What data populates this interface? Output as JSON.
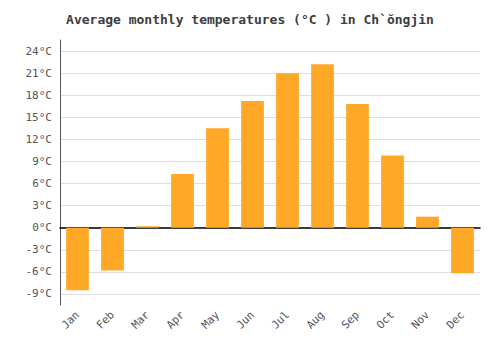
{
  "chart_data": {
    "type": "bar",
    "title": "Average monthly temperatures (°C ) in Ch`ŏngjin",
    "categories": [
      "Jan",
      "Feb",
      "Mar",
      "Apr",
      "May",
      "Jun",
      "Jul",
      "Aug",
      "Sep",
      "Oct",
      "Nov",
      "Dec"
    ],
    "values": [
      -8.5,
      -5.8,
      0.2,
      7.3,
      13.5,
      17.2,
      21.0,
      22.2,
      16.8,
      9.8,
      1.5,
      -6.2
    ],
    "color": "#FFA828",
    "ylim": [
      -10.5,
      25.5
    ],
    "yticks": [
      {
        "value": -9,
        "label": "-9°C"
      },
      {
        "value": -6,
        "label": "-6°C"
      },
      {
        "value": -3,
        "label": "-3°C"
      },
      {
        "value": 0,
        "label": "0°C"
      },
      {
        "value": 3,
        "label": "3°C"
      },
      {
        "value": 6,
        "label": "6°C"
      },
      {
        "value": 9,
        "label": "9°C"
      },
      {
        "value": 12,
        "label": "12°C"
      },
      {
        "value": 15,
        "label": "15°C"
      },
      {
        "value": 18,
        "label": "18°C"
      },
      {
        "value": 21,
        "label": "21°C"
      },
      {
        "value": 24,
        "label": "24°C"
      }
    ],
    "grid": true
  }
}
